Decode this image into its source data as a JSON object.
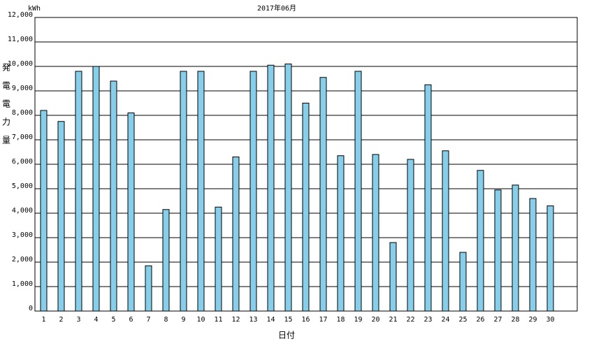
{
  "chart_data": {
    "type": "bar",
    "title": "2017年06月",
    "unit_label": "kWh",
    "y_label": "発電電力量",
    "x_label": "日付",
    "categories": [
      "1",
      "2",
      "3",
      "4",
      "5",
      "6",
      "7",
      "8",
      "9",
      "10",
      "11",
      "12",
      "13",
      "14",
      "15",
      "16",
      "17",
      "18",
      "19",
      "20",
      "21",
      "22",
      "23",
      "24",
      "25",
      "26",
      "27",
      "28",
      "29",
      "30"
    ],
    "values": [
      8200,
      7750,
      9800,
      10000,
      9400,
      8100,
      1850,
      4150,
      9800,
      9800,
      4250,
      6300,
      9800,
      10050,
      10100,
      8500,
      9550,
      6350,
      9800,
      6400,
      2800,
      6200,
      9250,
      6550,
      2400,
      5750,
      4950,
      5150,
      4600,
      4300
    ],
    "color": "#87ceeb",
    "ylim": [
      0,
      12000
    ],
    "yticks": [
      0,
      {
        "value": 1000,
        "label": "1,000"
      },
      {
        "value": 2000,
        "label": "2,000"
      },
      {
        "value": 3000,
        "label": "3,000"
      },
      {
        "value": 4000,
        "label": "4,000"
      },
      {
        "value": 5000,
        "label": "5,000"
      },
      {
        "value": 6000,
        "label": "6,000"
      },
      {
        "value": 7000,
        "label": "7,000"
      },
      {
        "value": 8000,
        "label": "8,000"
      },
      {
        "value": 9000,
        "label": "9,000"
      },
      {
        "value": 10000,
        "label": "10,000"
      },
      {
        "value": 11000,
        "label": "11,000"
      },
      {
        "value": 12000,
        "label": "12,000"
      }
    ],
    "grid": true
  }
}
